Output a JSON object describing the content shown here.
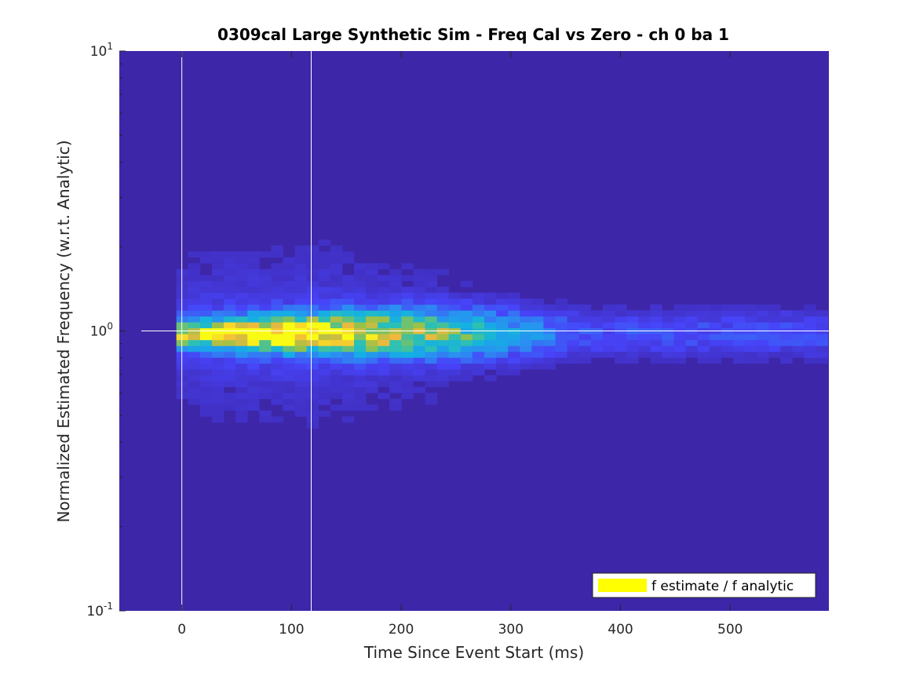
{
  "chart_data": {
    "type": "heatmap",
    "title": "0309cal Large Synthetic Sim - Freq Cal vs Zero - ch 0 ba 1",
    "xlabel": "Time Since Event Start (ms)",
    "ylabel": "Normalized Estimated Frequency (w.r.t. Analytic)",
    "xlim": [
      -57,
      590
    ],
    "ylim": [
      0.1,
      10
    ],
    "yscale": "log",
    "x_ticks": [
      0,
      100,
      200,
      300,
      400,
      500
    ],
    "x_tick_labels": [
      "0",
      "100",
      "200",
      "300",
      "400",
      "500"
    ],
    "y_ticks": [
      {
        "value": 0.1,
        "base": "10",
        "exp": "-1"
      },
      {
        "value": 1,
        "base": "10",
        "exp": "0"
      },
      {
        "value": 10,
        "base": "10",
        "exp": "1"
      }
    ],
    "vertical_lines_ms": [
      0,
      118
    ],
    "horizontal_line_value": 1,
    "horizontal_line_xrange": [
      -37,
      590
    ],
    "x_bins": {
      "start": -5,
      "width": 10.8,
      "count": 55
    },
    "density_peak": {
      "ridge_value": 0.98,
      "peak_ms": 95,
      "max_relative_count": 1.0
    },
    "colormap": [
      "#3e26a8",
      "#4743f8",
      "#2c8cf2",
      "#13b0e4",
      "#2fc1b0",
      "#93c24b",
      "#f3b93c",
      "#f9fb15"
    ],
    "background_color": "#3e26a8",
    "legend": {
      "position": "bottom-right",
      "label": "f estimate / f analytic",
      "swatch_color": "#ffff00"
    },
    "grid": false
  }
}
